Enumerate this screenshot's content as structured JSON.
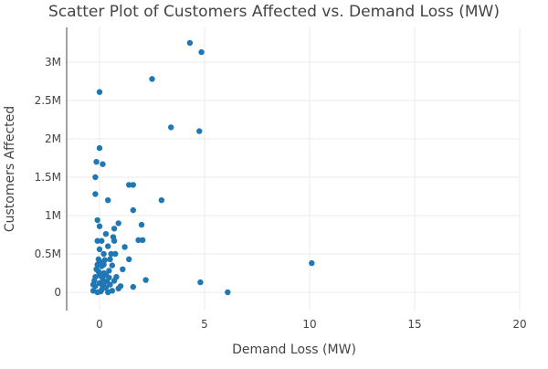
{
  "chart_data": {
    "type": "scatter",
    "title": "Scatter Plot of Customers Affected vs. Demand Loss (MW)",
    "xlabel": "Demand Loss (MW)",
    "ylabel": "Customers Affected",
    "xlim": [
      -1.5,
      20
    ],
    "ylim": [
      -250000,
      3450000
    ],
    "xticks": [
      {
        "v": 0,
        "label": "0"
      },
      {
        "v": 5,
        "label": "5"
      },
      {
        "v": 10,
        "label": "10"
      },
      {
        "v": 15,
        "label": "15"
      },
      {
        "v": 20,
        "label": "20"
      }
    ],
    "yticks": [
      {
        "v": 0,
        "label": "0"
      },
      {
        "v": 500000,
        "label": "0.5M"
      },
      {
        "v": 1000000,
        "label": "1M"
      },
      {
        "v": 1500000,
        "label": "1.5M"
      },
      {
        "v": 2000000,
        "label": "2M"
      },
      {
        "v": 2500000,
        "label": "2.5M"
      },
      {
        "v": 3000000,
        "label": "3M"
      }
    ],
    "grid": true,
    "color": "#1f77b4",
    "points": [
      [
        4.3,
        3250000
      ],
      [
        4.85,
        3130000
      ],
      [
        2.5,
        2780000
      ],
      [
        0,
        2610000
      ],
      [
        3.4,
        2150000
      ],
      [
        4.75,
        2100000
      ],
      [
        0,
        1880000
      ],
      [
        -0.15,
        1700000
      ],
      [
        0.15,
        1670000
      ],
      [
        -0.2,
        1500000
      ],
      [
        1.4,
        1400000
      ],
      [
        1.6,
        1400000
      ],
      [
        -0.2,
        1280000
      ],
      [
        0.4,
        1200000
      ],
      [
        2.95,
        1200000
      ],
      [
        1.6,
        1070000
      ],
      [
        -0.1,
        940000
      ],
      [
        0,
        860000
      ],
      [
        2,
        880000
      ],
      [
        0.9,
        900000
      ],
      [
        0.7,
        830000
      ],
      [
        0.3,
        760000
      ],
      [
        -0.1,
        670000
      ],
      [
        0.1,
        670000
      ],
      [
        0.65,
        720000
      ],
      [
        0.7,
        670000
      ],
      [
        1.85,
        680000
      ],
      [
        2.05,
        680000
      ],
      [
        0.4,
        600000
      ],
      [
        1.2,
        590000
      ],
      [
        0,
        560000
      ],
      [
        0.2,
        500000
      ],
      [
        0.55,
        500000
      ],
      [
        0.75,
        500000
      ],
      [
        1.4,
        430000
      ],
      [
        0.5,
        430000
      ],
      [
        -0.05,
        430000
      ],
      [
        10.1,
        380000
      ],
      [
        0.2,
        360000
      ],
      [
        1.1,
        300000
      ],
      [
        0.8,
        200000
      ],
      [
        0.9,
        50000
      ],
      [
        1.0,
        80000
      ],
      [
        1.6,
        70000
      ],
      [
        2.2,
        160000
      ],
      [
        4.8,
        130000
      ],
      [
        6.1,
        0
      ],
      [
        0.6,
        350000
      ],
      [
        0.45,
        280000
      ],
      [
        0.3,
        230000
      ],
      [
        0.15,
        180000
      ],
      [
        0,
        120000
      ],
      [
        -0.2,
        80000
      ],
      [
        -0.3,
        20000
      ],
      [
        -0.1,
        0
      ],
      [
        0.1,
        30000
      ],
      [
        0.3,
        60000
      ],
      [
        0.5,
        100000
      ],
      [
        0.2,
        250000
      ],
      [
        -0.15,
        300000
      ],
      [
        -0.2,
        200000
      ],
      [
        0,
        400000
      ],
      [
        0.1,
        340000
      ],
      [
        -0.25,
        150000
      ],
      [
        0.35,
        140000
      ],
      [
        0.6,
        20000
      ],
      [
        0.05,
        10000
      ],
      [
        -0.05,
        270000
      ],
      [
        0.25,
        420000
      ],
      [
        0.45,
        190000
      ],
      [
        -0.3,
        100000
      ],
      [
        0.15,
        80000
      ],
      [
        0.4,
        0
      ],
      [
        0.7,
        150000
      ],
      [
        -0.1,
        360000
      ],
      [
        0,
        220000
      ],
      [
        0.2,
        120000
      ]
    ]
  }
}
